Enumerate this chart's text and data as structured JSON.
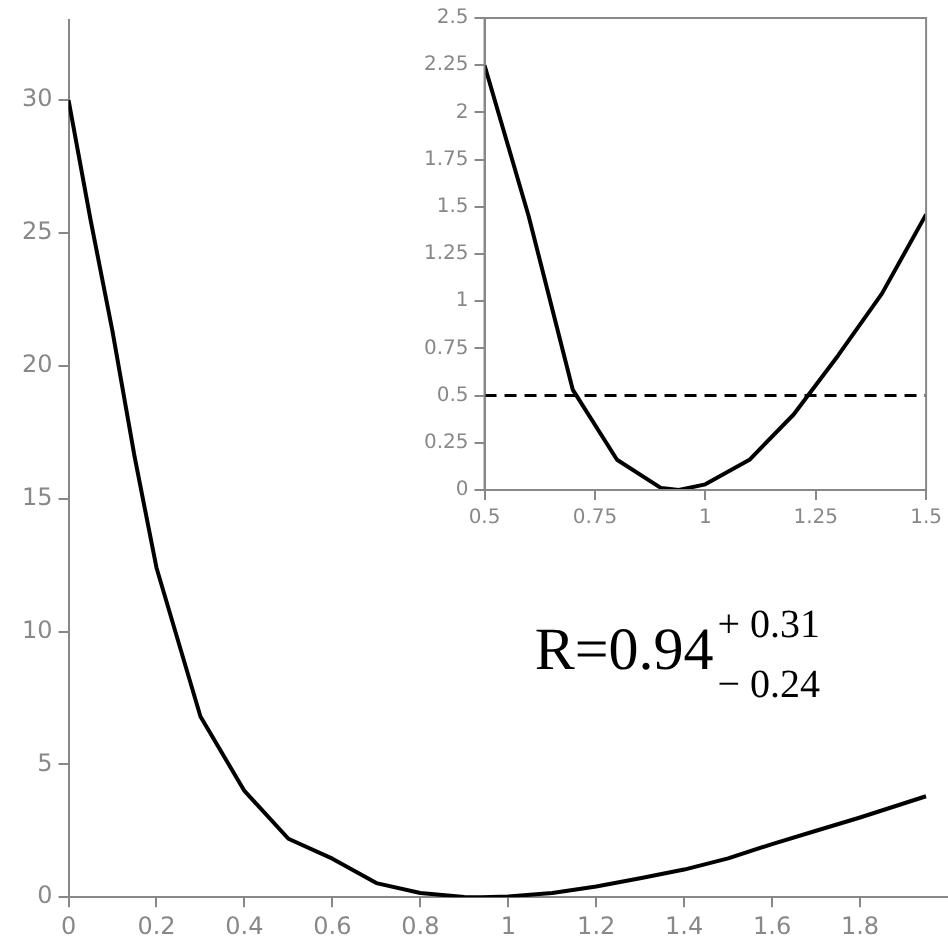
{
  "chart_data": [
    {
      "type": "line",
      "x": [
        0,
        0.05,
        0.1,
        0.15,
        0.2,
        0.3,
        0.4,
        0.5,
        0.6,
        0.7,
        0.8,
        0.9,
        0.94,
        1.0,
        1.1,
        1.2,
        1.3,
        1.4,
        1.5,
        1.6,
        1.7,
        1.8,
        1.95
      ],
      "series": [
        {
          "color": "#000000",
          "values": [
            30,
            25.5,
            21.3,
            16.6,
            12.4,
            6.8,
            4.0,
            2.2,
            1.45,
            0.53,
            0.16,
            0.01,
            0,
            0.03,
            0.16,
            0.4,
            0.71,
            1.04,
            1.46,
            2.0,
            2.5,
            3.0,
            3.8
          ]
        }
      ],
      "xlim": [
        0,
        2
      ],
      "xticks": [
        0,
        0.2,
        0.4,
        0.6,
        0.8,
        1,
        1.2,
        1.4,
        1.6,
        1.8
      ],
      "ylim": [
        0,
        33
      ],
      "yticks": [
        0,
        5,
        10,
        15,
        20,
        25,
        30
      ],
      "grid": false,
      "legend": false,
      "marker": "none",
      "line_style": "solid",
      "annotations": [
        "R=0.94$^{+ 0.31}$$_{− 0.24}$"
      ]
    },
    {
      "type": "line",
      "x": [
        0.5,
        0.6,
        0.7,
        0.8,
        0.9,
        0.94,
        1.0,
        1.1,
        1.2,
        1.3,
        1.4,
        1.5
      ],
      "series": [
        {
          "color": "#000000",
          "values": [
            2.25,
            1.45,
            0.53,
            0.16,
            0.01,
            0,
            0.03,
            0.16,
            0.4,
            0.71,
            1.04,
            1.46
          ]
        }
      ],
      "xlim": [
        0.5,
        1.5
      ],
      "xticks": [
        0.5,
        0.75,
        1,
        1.25,
        1.5
      ],
      "ylim": [
        0,
        2.5
      ],
      "yticks": [
        0,
        0.25,
        0.5,
        0.75,
        1,
        1.25,
        1.5,
        1.75,
        2,
        2.25,
        2.5
      ],
      "grid": false,
      "legend": false,
      "marker": "none",
      "line_style": "solid",
      "ref_lines": [
        {
          "axis": "y",
          "value": 0.5,
          "line_style": "dashed",
          "color": "#000000"
        }
      ]
    }
  ]
}
